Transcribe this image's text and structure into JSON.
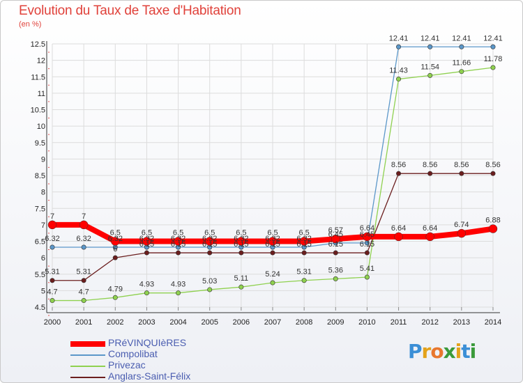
{
  "title": "Evolution du Taux de Taxe d'Habitation",
  "subtitle": "(en %)",
  "logo": {
    "text": "Proxiti",
    "letters": [
      "P",
      "r",
      "o",
      "x",
      "i",
      "t",
      "i"
    ],
    "colors": [
      "#3b8fd6",
      "#e3a21a",
      "#e8772e",
      "#3a9a3a",
      "#e3a21a",
      "#3b8fd6",
      "#3a9a3a"
    ]
  },
  "chart_data": {
    "type": "line",
    "x": [
      "2000",
      "2001",
      "2002",
      "2003",
      "2004",
      "2005",
      "2006",
      "2007",
      "2008",
      "2009",
      "2010",
      "2011",
      "2012",
      "2013",
      "2014"
    ],
    "ylim": [
      4.5,
      12.5
    ],
    "yticks": [
      "4.5",
      "5",
      "5.5",
      "6",
      "6.5",
      "7",
      "7.5",
      "8",
      "8.5",
      "9",
      "9.5",
      "10",
      "10.5",
      "11",
      "11.5",
      "12",
      "12.5"
    ],
    "grid": true,
    "legend_position": "bottom-left",
    "series": [
      {
        "name": "Anglars-Saint-Félix",
        "color": "#6b1e1e",
        "width": 1.3,
        "values": [
          5.31,
          5.31,
          6.0,
          6.15,
          6.15,
          6.15,
          6.15,
          6.15,
          6.15,
          6.15,
          6.15,
          8.56,
          8.56,
          8.56,
          8.56
        ],
        "labels": [
          "5.31",
          "5.31",
          "6",
          "6.15",
          "6.15",
          "6.15",
          "6.15",
          "6.15",
          "6.15",
          "6.15",
          "6.15",
          "8.56",
          "8.56",
          "8.56",
          "8.56"
        ]
      },
      {
        "name": "Privezac",
        "color": "#8fd14f",
        "width": 1.3,
        "values": [
          4.7,
          4.7,
          4.79,
          4.93,
          4.93,
          5.03,
          5.11,
          5.24,
          5.31,
          5.36,
          5.41,
          11.43,
          11.54,
          11.66,
          11.78
        ],
        "labels": [
          "4.7",
          "4.7",
          "4.79",
          "4.93",
          "4.93",
          "5.03",
          "5.11",
          "5.24",
          "5.31",
          "5.36",
          "5.41",
          "11.43",
          "11.54",
          "11.66",
          "11.78"
        ]
      },
      {
        "name": "Compolibat",
        "color": "#5b97c9",
        "width": 1.3,
        "values": [
          6.32,
          6.32,
          6.32,
          6.32,
          6.32,
          6.32,
          6.32,
          6.32,
          6.32,
          6.45,
          6.45,
          12.41,
          12.41,
          12.41,
          12.41
        ],
        "labels": [
          "6.32",
          "6.32",
          "6.32",
          "6.32",
          "6.32",
          "6.32",
          "6.32",
          "6.32",
          "6.32",
          "6.45",
          "6.45",
          "12.41",
          "12.41",
          "12.41",
          "12.41"
        ]
      },
      {
        "name": "PRéVINQUIèRES",
        "color": "#ff0000",
        "width": 8,
        "values": [
          7,
          7,
          6.5,
          6.5,
          6.5,
          6.5,
          6.5,
          6.5,
          6.5,
          6.57,
          6.64,
          6.64,
          6.64,
          6.74,
          6.88
        ],
        "labels": [
          "7",
          "7",
          "6.5",
          "6.5",
          "6.5",
          "6.5",
          "6.5",
          "6.5",
          "6.5",
          "6.57",
          "6.64",
          "6.64",
          "6.64",
          "6.74",
          "6.88"
        ]
      }
    ]
  }
}
